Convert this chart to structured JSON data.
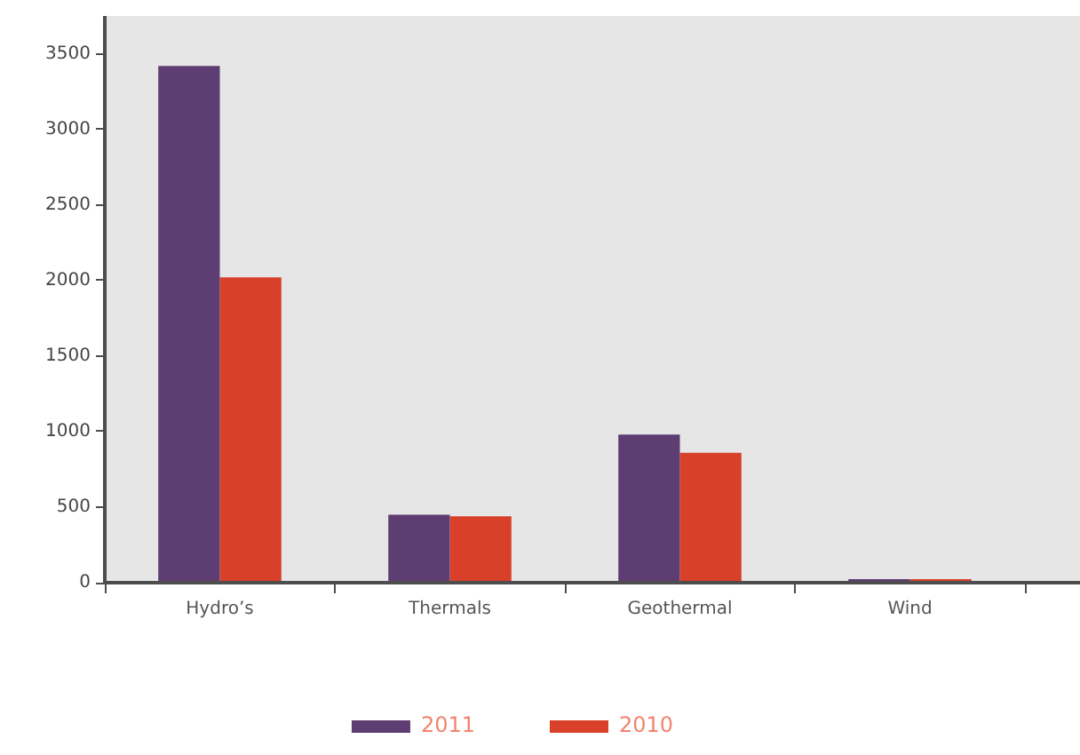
{
  "chart_data": {
    "type": "bar",
    "categories": [
      "Hydro’s",
      "Thermals",
      "Geothermal",
      "Wind"
    ],
    "series": [
      {
        "name": "2011",
        "color": "#5e3d72",
        "values": [
          3420,
          450,
          980,
          0
        ]
      },
      {
        "name": "2010",
        "color": "#d9402a",
        "values": [
          2020,
          440,
          860,
          0
        ]
      }
    ],
    "ylim": [
      0,
      3750
    ],
    "yticks": [
      0,
      500,
      1000,
      1500,
      2000,
      2500,
      3000,
      3500
    ],
    "legend": "bottom"
  }
}
